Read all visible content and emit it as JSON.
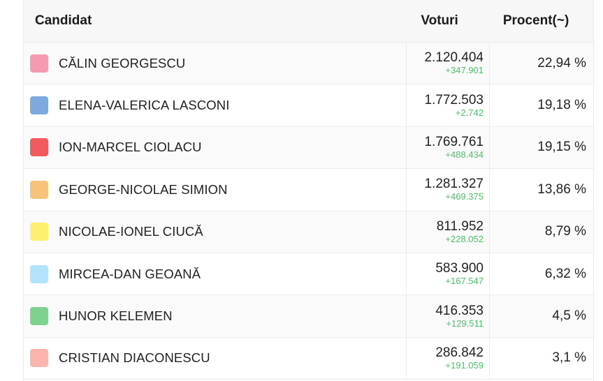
{
  "header": {
    "candidate": "Candidat",
    "votes": "Voturi",
    "percent": "Procent(~)"
  },
  "rows": [
    {
      "name": "CĂLIN GEORGESCU",
      "votes": "2.120.404",
      "delta": "+347.901",
      "percent": "22,94 %",
      "color": "#f29bb1"
    },
    {
      "name": "ELENA-VALERICA LASCONI",
      "votes": "1.772.503",
      "delta": "+2.742",
      "percent": "19,18 %",
      "color": "#7ea9de"
    },
    {
      "name": "ION-MARCEL CIOLACU",
      "votes": "1.769.761",
      "delta": "+488.434",
      "percent": "19,15 %",
      "color": "#f25a5f"
    },
    {
      "name": "GEORGE-NICOLAE SIMION",
      "votes": "1.281.327",
      "delta": "+469.375",
      "percent": "13,86 %",
      "color": "#f7c27a"
    },
    {
      "name": "NICOLAE-IONEL CIUCĂ",
      "votes": "811.952",
      "delta": "+228.052",
      "percent": "8,79 %",
      "color": "#fbf06f"
    },
    {
      "name": "MIRCEA-DAN GEOANĂ",
      "votes": "583.900",
      "delta": "+167.547",
      "percent": "6,32 %",
      "color": "#b3e3fb"
    },
    {
      "name": "HUNOR KELEMEN",
      "votes": "416.353",
      "delta": "+129.511",
      "percent": "4,5 %",
      "color": "#7fd18f"
    },
    {
      "name": "CRISTIAN DIACONESCU",
      "votes": "286.842",
      "delta": "+191.059",
      "percent": "3,1 %",
      "color": "#f9b5ab"
    }
  ]
}
